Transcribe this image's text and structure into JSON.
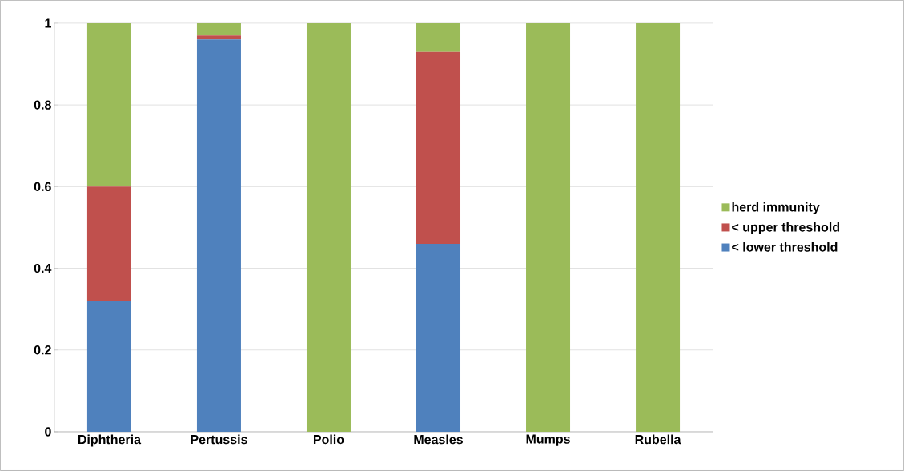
{
  "chart_data": {
    "type": "bar",
    "stacked": true,
    "categories": [
      "Diphtheria",
      "Pertussis",
      "Polio",
      "Measles",
      "Mumps",
      "Rubella"
    ],
    "series": [
      {
        "name": "< lower threshold",
        "color": "#4f81bd",
        "values": [
          0.32,
          0.96,
          0,
          0.46,
          0,
          0
        ]
      },
      {
        "name": "< upper threshold",
        "color": "#c0504d",
        "values": [
          0.28,
          0.01,
          0,
          0.47,
          0,
          0
        ]
      },
      {
        "name": "herd immunity",
        "color": "#9bbb59",
        "values": [
          0.4,
          0.03,
          1,
          0.07,
          1,
          1
        ]
      }
    ],
    "ylim": [
      0,
      1
    ],
    "yticks": [
      0,
      0.2,
      0.4,
      0.6,
      0.8,
      1
    ],
    "grid": "y",
    "legend": "right"
  }
}
